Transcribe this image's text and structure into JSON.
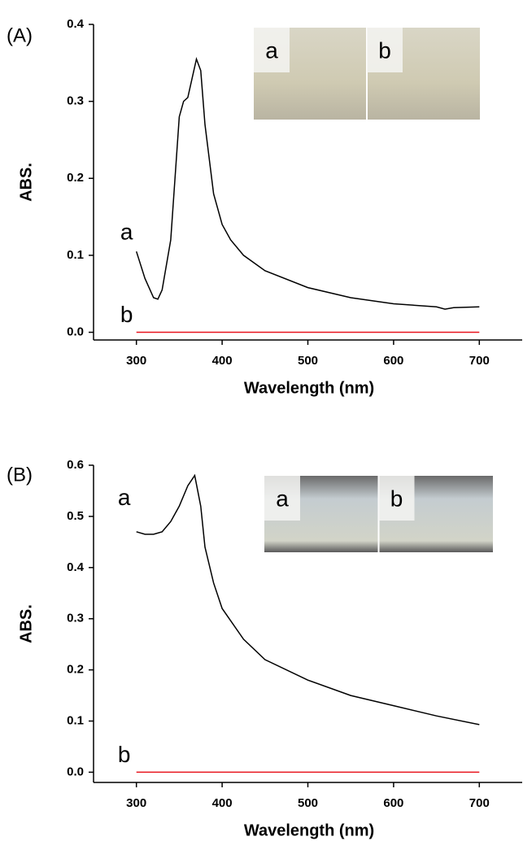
{
  "chart_data": [
    {
      "type": "line",
      "panel_label": "(A)",
      "xlabel": "Wavelength (nm)",
      "ylabel": "ABS.",
      "xlim": [
        250,
        750
      ],
      "ylim": [
        -0.01,
        0.4
      ],
      "xticks": [
        300,
        400,
        500,
        600,
        700
      ],
      "yticks": [
        {
          "value": 0,
          "label": "0.0"
        },
        0.1,
        0.2,
        0.3,
        0.4
      ],
      "inset_labels": [
        "a",
        "b"
      ],
      "series": [
        {
          "name": "a",
          "color": "#000000",
          "x": [
            300,
            310,
            320,
            325,
            330,
            340,
            350,
            355,
            360,
            365,
            370,
            375,
            380,
            390,
            400,
            410,
            425,
            450,
            500,
            550,
            600,
            650,
            660,
            670,
            700
          ],
          "values": [
            0.105,
            0.07,
            0.045,
            0.043,
            0.055,
            0.12,
            0.28,
            0.3,
            0.305,
            0.33,
            0.355,
            0.34,
            0.27,
            0.18,
            0.14,
            0.12,
            0.1,
            0.08,
            0.058,
            0.045,
            0.037,
            0.033,
            0.03,
            0.032,
            0.033
          ]
        },
        {
          "name": "b",
          "color": "#e8141e",
          "x": [
            300,
            700
          ],
          "values": [
            0,
            0
          ]
        }
      ]
    },
    {
      "type": "line",
      "panel_label": "(B)",
      "xlabel": "Wavelength (nm)",
      "ylabel": "ABS.",
      "xlim": [
        250,
        750
      ],
      "ylim": [
        -0.02,
        0.6
      ],
      "xticks": [
        300,
        400,
        500,
        600,
        700
      ],
      "yticks": [
        {
          "value": 0,
          "label": "0.0"
        },
        0.1,
        0.2,
        0.3,
        0.4,
        0.5,
        0.6
      ],
      "inset_labels": [
        "a",
        "b"
      ],
      "series": [
        {
          "name": "a",
          "color": "#000000",
          "x": [
            300,
            310,
            320,
            330,
            340,
            350,
            360,
            368,
            375,
            380,
            390,
            400,
            425,
            450,
            500,
            550,
            600,
            650,
            700
          ],
          "values": [
            0.47,
            0.465,
            0.465,
            0.47,
            0.49,
            0.52,
            0.56,
            0.58,
            0.52,
            0.44,
            0.37,
            0.32,
            0.26,
            0.22,
            0.18,
            0.15,
            0.13,
            0.11,
            0.093
          ]
        },
        {
          "name": "b",
          "color": "#e8141e",
          "x": [
            300,
            700
          ],
          "values": [
            0,
            0
          ]
        }
      ]
    }
  ]
}
